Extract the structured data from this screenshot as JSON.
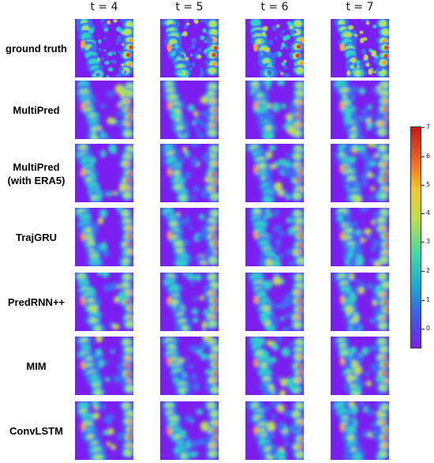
{
  "columns": [
    "t = 4",
    "t = 5",
    "t = 6",
    "t = 7"
  ],
  "rows": [
    {
      "label": "ground truth"
    },
    {
      "label": "MultiPred"
    },
    {
      "label": "MultiPred\n(with ERA5)"
    },
    {
      "label": "TrajGRU"
    },
    {
      "label": "PredRNN++"
    },
    {
      "label": "MIM"
    },
    {
      "label": "ConvLSTM"
    }
  ],
  "colorbar": {
    "ticks": [
      "7",
      "6",
      "5",
      "4",
      "3",
      "2",
      "1",
      "0"
    ],
    "colors": [
      "#c4161c",
      "#f26b21",
      "#f7c72a",
      "#b7df4c",
      "#3fd9a8",
      "#1aa9d6",
      "#3d5ae6",
      "#7b21ea"
    ]
  },
  "field_colors": {
    "background": "#7a1ff0",
    "low": "#3f6cf2",
    "mid": "#2fd2c6",
    "high": "#b9e14a",
    "peak": "#f7a41f",
    "max": "#e0301c"
  }
}
